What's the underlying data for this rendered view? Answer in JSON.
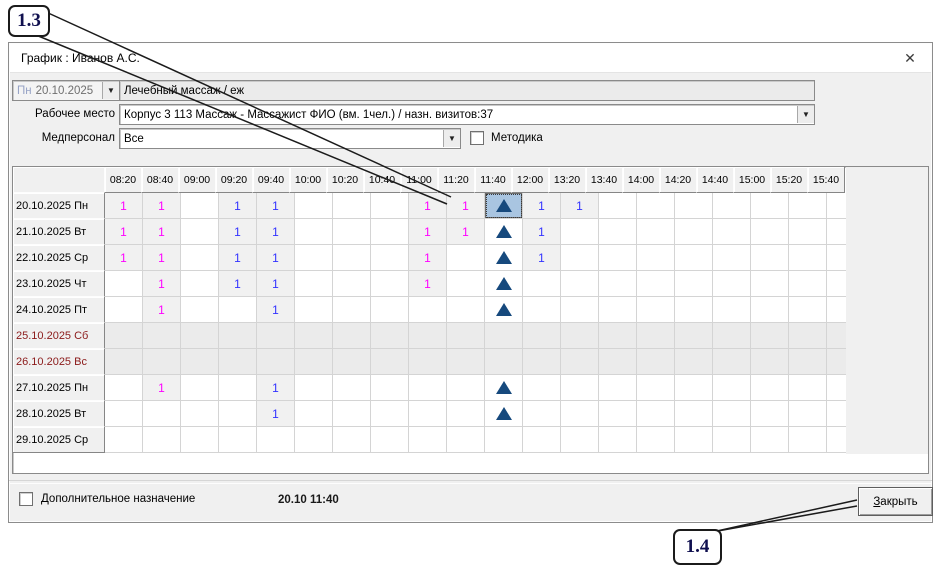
{
  "callouts": {
    "step_13": "1.3",
    "step_14": "1.4"
  },
  "window": {
    "title": "График : Иванов А.С.",
    "close_glyph": "✕"
  },
  "controls": {
    "date_dow": "Пн",
    "date_value": "20.10.2025",
    "service_value": "Лечебный массаж / еж",
    "workplace_label": "Рабочее место",
    "workplace_value": "Корпус 3 113 Массаж - Массажист ФИО  (вм. 1чел.) / назн. визитов:37",
    "staff_label": "Медперсонал",
    "staff_value": "Все",
    "methodika_label": "Методика",
    "dropdown_glyph": "▼"
  },
  "footer": {
    "extra_assignment_label": "Дополнительное назначение",
    "selected_slot": "20.10 11:40",
    "close_button_hotkey": "З",
    "close_button_rest": "акрыть"
  },
  "colors": {
    "magenta_count": "#ff00ff",
    "blue_count": "#3232ff",
    "triangle": "#16497d",
    "selected_cell_bg": "#a9c5e1",
    "weekend_red": "#8b1a1a"
  },
  "table": {
    "time_columns": [
      "08:20",
      "08:40",
      "09:00",
      "09:20",
      "09:40",
      "10:00",
      "10:20",
      "10:40",
      "11:00",
      "11:20",
      "11:40",
      "12:00",
      "13:20",
      "13:40",
      "14:00",
      "14:20",
      "14:40",
      "15:00",
      "15:20",
      "15:40"
    ],
    "legend": {
      "1m": "magenta count 1",
      "1b": "blue count 1",
      "T": "triangle marker",
      "TS": "selected triangle cell"
    },
    "rows": [
      {
        "label": "20.10.2025 Пн",
        "weekend": false,
        "cells": [
          "1m",
          "1m",
          "",
          "1b",
          "1b",
          "",
          "",
          "",
          "1m",
          "1m",
          "TS",
          "1b",
          "1b",
          "",
          "",
          "",
          "",
          "",
          "",
          ""
        ]
      },
      {
        "label": "21.10.2025 Вт",
        "weekend": false,
        "cells": [
          "1m",
          "1m",
          "",
          "1b",
          "1b",
          "",
          "",
          "",
          "1m",
          "1m",
          "T",
          "1b",
          "",
          "",
          "",
          "",
          "",
          "",
          "",
          ""
        ]
      },
      {
        "label": "22.10.2025 Ср",
        "weekend": false,
        "cells": [
          "1m",
          "1m",
          "",
          "1b",
          "1b",
          "",
          "",
          "",
          "1m",
          "",
          "T",
          "1b",
          "",
          "",
          "",
          "",
          "",
          "",
          "",
          ""
        ]
      },
      {
        "label": "23.10.2025 Чт",
        "weekend": false,
        "cells": [
          "",
          "1m",
          "",
          "1b",
          "1b",
          "",
          "",
          "",
          "1m",
          "",
          "T",
          "",
          "",
          "",
          "",
          "",
          "",
          "",
          "",
          ""
        ]
      },
      {
        "label": "24.10.2025 Пт",
        "weekend": false,
        "cells": [
          "",
          "1m",
          "",
          "",
          "1b",
          "",
          "",
          "",
          "",
          "",
          "T",
          "",
          "",
          "",
          "",
          "",
          "",
          "",
          "",
          ""
        ]
      },
      {
        "label": "25.10.2025 Сб",
        "weekend": true,
        "cells": [
          "",
          "",
          "",
          "",
          "",
          "",
          "",
          "",
          "",
          "",
          "",
          "",
          "",
          "",
          "",
          "",
          "",
          "",
          "",
          ""
        ]
      },
      {
        "label": "26.10.2025 Вс",
        "weekend": true,
        "cells": [
          "",
          "",
          "",
          "",
          "",
          "",
          "",
          "",
          "",
          "",
          "",
          "",
          "",
          "",
          "",
          "",
          "",
          "",
          "",
          ""
        ]
      },
      {
        "label": "27.10.2025 Пн",
        "weekend": false,
        "cells": [
          "",
          "1m",
          "",
          "",
          "1b",
          "",
          "",
          "",
          "",
          "",
          "T",
          "",
          "",
          "",
          "",
          "",
          "",
          "",
          "",
          ""
        ]
      },
      {
        "label": "28.10.2025 Вт",
        "weekend": false,
        "cells": [
          "",
          "",
          "",
          "",
          "1b",
          "",
          "",
          "",
          "",
          "",
          "T",
          "",
          "",
          "",
          "",
          "",
          "",
          "",
          "",
          ""
        ]
      },
      {
        "label": "29.10.2025 Ср",
        "weekend": false,
        "cells": [
          "",
          "",
          "",
          "",
          "",
          "",
          "",
          "",
          "",
          "",
          "",
          "",
          "",
          "",
          "",
          "",
          "",
          "",
          "",
          ""
        ]
      }
    ]
  }
}
